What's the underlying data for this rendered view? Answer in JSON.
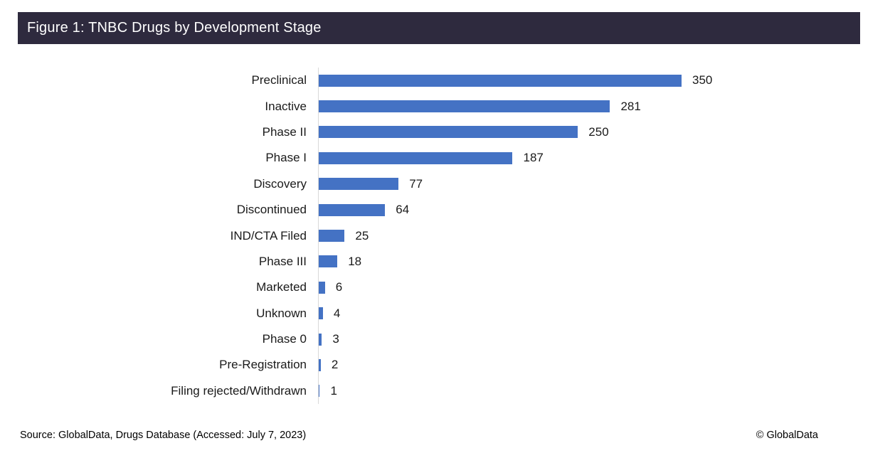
{
  "header": {
    "title": "Figure 1: TNBC Drugs by Development Stage"
  },
  "chart_data": {
    "type": "bar",
    "orientation": "horizontal",
    "title": "Figure 1: TNBC Drugs by Development Stage",
    "categories": [
      "Preclinical",
      "Inactive",
      "Phase II",
      "Phase I",
      "Discovery",
      "Discontinued",
      "IND/CTA Filed",
      "Phase III",
      "Marketed",
      "Unknown",
      "Phase 0",
      "Pre-Registration",
      "Filing rejected/Withdrawn"
    ],
    "values": [
      350,
      281,
      250,
      187,
      77,
      64,
      25,
      18,
      6,
      4,
      3,
      2,
      1
    ],
    "xlabel": "",
    "ylabel": "",
    "xlim": [
      0,
      350
    ],
    "grid": false,
    "legend": "none",
    "value_labels": true,
    "sort_order": "descending"
  },
  "colors": {
    "header_bg": "#2E2A3E",
    "header_text": "#FFFFFF",
    "bar": "#4472C4",
    "axis_line": "#D9D9D9",
    "label_text": "#1A1A1A"
  },
  "footer": {
    "source": "Source: GlobalData, Drugs Database (Accessed: July 7, 2023)",
    "copyright": "© GlobalData"
  }
}
